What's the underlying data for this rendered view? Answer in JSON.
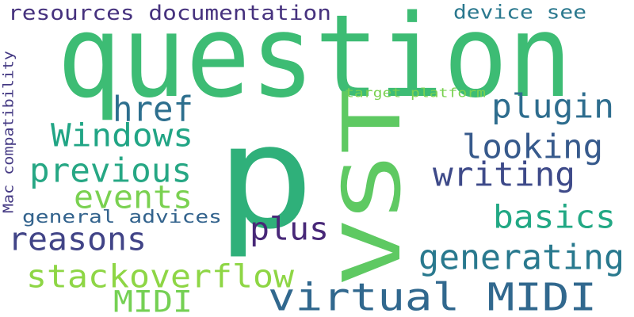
{
  "words": [
    {
      "text": "question",
      "color": "#3dbc74"
    },
    {
      "text": "p",
      "color": "#2fb07a"
    },
    {
      "text": "VST",
      "color": "#5ec962"
    },
    {
      "text": "virtual MIDI",
      "color": "#31688e"
    },
    {
      "text": "resources documentation",
      "color": "#46327e"
    },
    {
      "text": "device see",
      "color": "#2a788e"
    },
    {
      "text": "href",
      "color": "#2d6f8e"
    },
    {
      "text": "plugin",
      "color": "#2e6d8e"
    },
    {
      "text": "Windows",
      "color": "#21a585"
    },
    {
      "text": "looking",
      "color": "#375a8c"
    },
    {
      "text": "previous",
      "color": "#26a784"
    },
    {
      "text": "writing",
      "color": "#3e4a89"
    },
    {
      "text": "events",
      "color": "#7ad151"
    },
    {
      "text": "basics",
      "color": "#22a884"
    },
    {
      "text": "reasons",
      "color": "#414487"
    },
    {
      "text": "plus",
      "color": "#482878"
    },
    {
      "text": "general advices",
      "color": "#33638d"
    },
    {
      "text": "generating",
      "color": "#29798e"
    },
    {
      "text": "stackoverflow",
      "color": "#8ed645"
    },
    {
      "text": "MIDI",
      "color": "#75d054"
    },
    {
      "text": "target platform",
      "color": "#7ad151"
    },
    {
      "text": "Mac compatibility",
      "color": "#443983"
    }
  ]
}
